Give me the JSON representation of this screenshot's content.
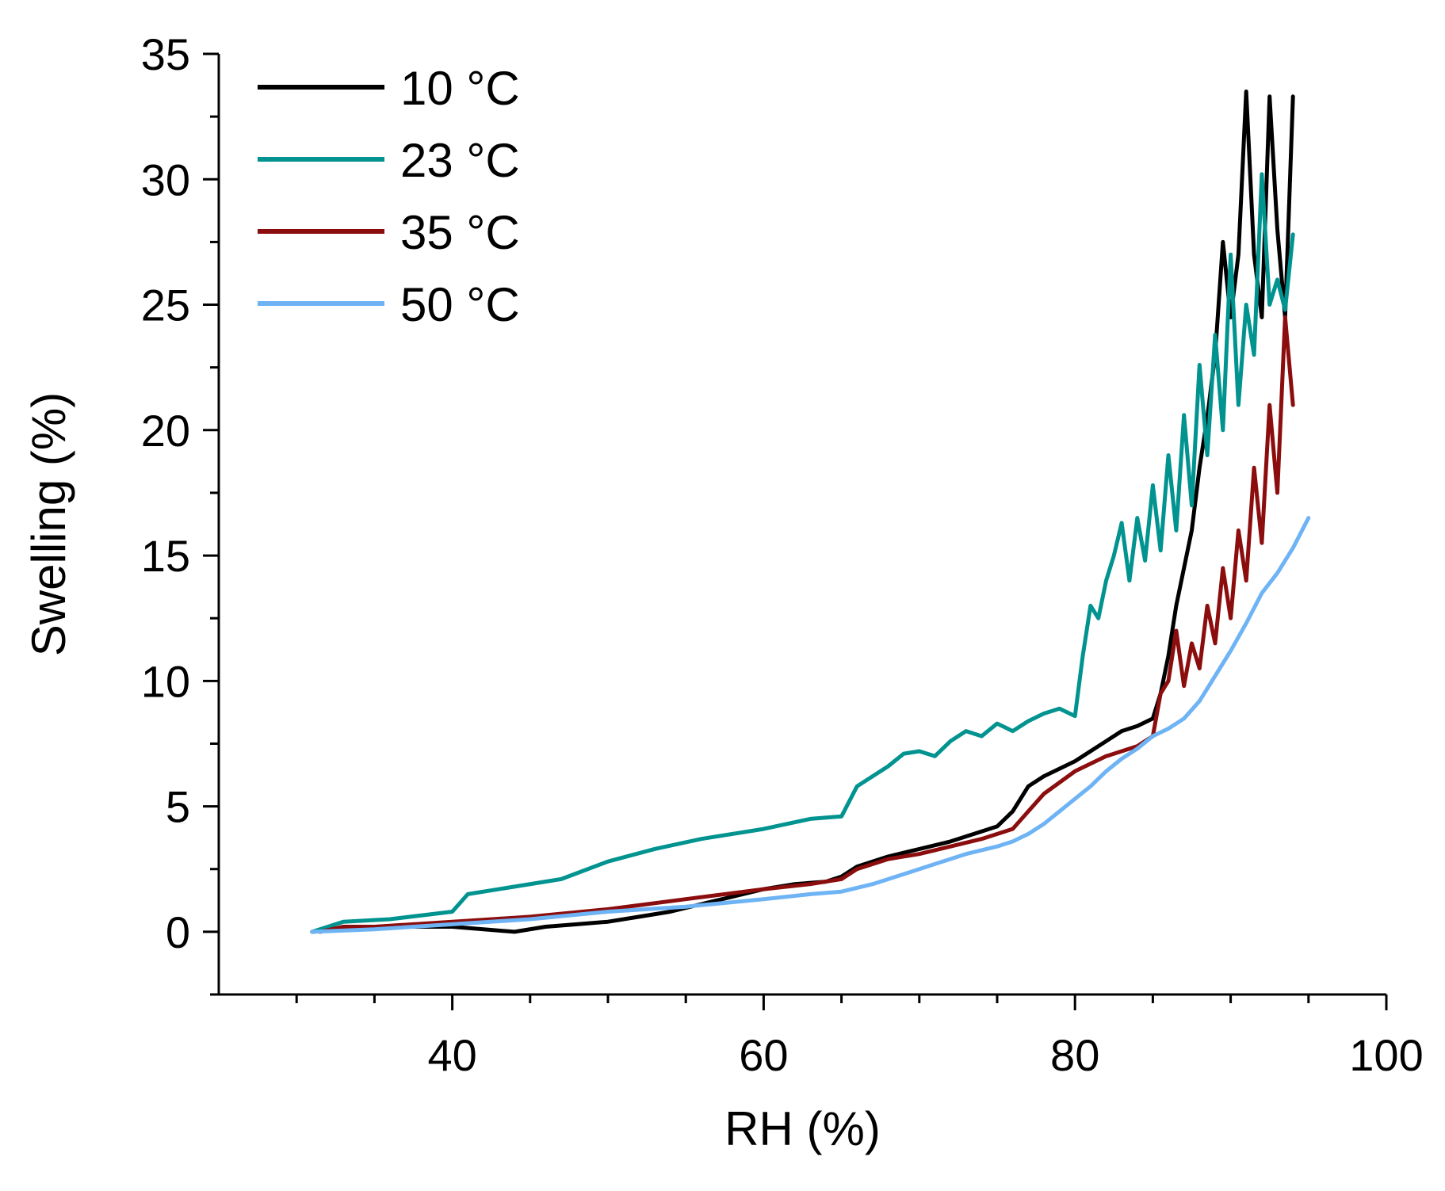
{
  "chart_data": {
    "type": "line",
    "title": "",
    "xlabel": "RH (%)",
    "ylabel": "Swelling (%)",
    "xlim": [
      25,
      100
    ],
    "ylim": [
      -2.5,
      35
    ],
    "x_ticks": [
      40,
      60,
      80,
      100
    ],
    "x_tick_labels": [
      "40",
      "60",
      "80",
      "100"
    ],
    "y_ticks": [
      0,
      5,
      10,
      15,
      20,
      25,
      30,
      35
    ],
    "y_tick_labels": [
      "0",
      "5",
      "10",
      "15",
      "20",
      "25",
      "30",
      "35"
    ],
    "x_minor_tick_step": 5,
    "y_minor_tick_step": 2.5,
    "grid": false,
    "legend_position": "top-left",
    "series": [
      {
        "name": "10 °C",
        "color": "#000000",
        "x": [
          31,
          33,
          36,
          40,
          44,
          46,
          48,
          50,
          52,
          54,
          56,
          58,
          60,
          62,
          64,
          65,
          66,
          68,
          70,
          72,
          74,
          75,
          76,
          77,
          78,
          79,
          80,
          81,
          82,
          83,
          84,
          85,
          85.5,
          86,
          86.5,
          87,
          87.5,
          88,
          88.5,
          89,
          89.5,
          90,
          90.5,
          91,
          91.5,
          92,
          92.5,
          93,
          93.5,
          94
        ],
        "y": [
          0,
          0.1,
          0.2,
          0.2,
          0,
          0.2,
          0.3,
          0.4,
          0.6,
          0.8,
          1.1,
          1.4,
          1.7,
          1.9,
          2.0,
          2.2,
          2.6,
          3.0,
          3.3,
          3.6,
          4.0,
          4.2,
          4.8,
          5.8,
          6.2,
          6.5,
          6.8,
          7.2,
          7.6,
          8.0,
          8.2,
          8.5,
          9.5,
          11.0,
          13.0,
          14.5,
          16.0,
          18.5,
          20.5,
          23.0,
          27.5,
          24.5,
          27.0,
          33.5,
          27.0,
          24.5,
          33.3,
          28.0,
          24.5,
          33.3
        ]
      },
      {
        "name": "23 °C",
        "color": "#00938F",
        "x": [
          31,
          33,
          36,
          40,
          41,
          44,
          47,
          50,
          53,
          56,
          60,
          63,
          65,
          66,
          68,
          69,
          70,
          71,
          72,
          73,
          74,
          75,
          76,
          77,
          78,
          79,
          80,
          80.5,
          81,
          81.5,
          82,
          82.5,
          83,
          83.5,
          84,
          84.5,
          85,
          85.5,
          86,
          86.5,
          87,
          87.5,
          88,
          88.5,
          89,
          89.5,
          90,
          90.5,
          91,
          91.5,
          92,
          92.5,
          93,
          93.5,
          94
        ],
        "y": [
          0,
          0.4,
          0.5,
          0.8,
          1.5,
          1.8,
          2.1,
          2.8,
          3.3,
          3.7,
          4.1,
          4.5,
          4.6,
          5.8,
          6.6,
          7.1,
          7.2,
          7.0,
          7.6,
          8.0,
          7.8,
          8.3,
          8.0,
          8.4,
          8.7,
          8.9,
          8.6,
          11.0,
          13.0,
          12.5,
          14.0,
          15.0,
          16.3,
          14.0,
          16.5,
          14.8,
          17.8,
          15.2,
          19.0,
          16.0,
          20.6,
          17.0,
          22.6,
          19.0,
          23.8,
          20.0,
          27.0,
          21.0,
          25.0,
          23.0,
          30.2,
          25.0,
          26.0,
          24.8,
          27.8
        ]
      },
      {
        "name": "35 °C",
        "color": "#8B0D0D",
        "x": [
          31.5,
          33,
          35,
          40,
          45,
          50,
          55,
          60,
          63,
          65,
          66,
          68,
          70,
          72,
          74,
          76,
          77,
          78,
          80,
          82,
          84,
          85,
          85.5,
          86,
          86.5,
          87,
          87.5,
          88,
          88.5,
          89,
          89.5,
          90,
          90.5,
          91,
          91.5,
          92,
          92.5,
          93,
          93.5,
          94
        ],
        "y": [
          0,
          0.2,
          0.2,
          0.4,
          0.6,
          0.9,
          1.3,
          1.7,
          1.9,
          2.1,
          2.5,
          2.9,
          3.1,
          3.4,
          3.7,
          4.1,
          4.8,
          5.5,
          6.4,
          7.0,
          7.4,
          7.8,
          9.5,
          10.0,
          12.0,
          9.8,
          11.5,
          10.5,
          13.0,
          11.5,
          14.5,
          12.5,
          16.0,
          14.0,
          18.5,
          15.5,
          21.0,
          17.5,
          24.5,
          21.0
        ]
      },
      {
        "name": "50 °C",
        "color": "#6EB4F5",
        "x": [
          31,
          35,
          40,
          45,
          50,
          55,
          60,
          63,
          65,
          67,
          69,
          71,
          73,
          75,
          76,
          77,
          78,
          79,
          80,
          81,
          82,
          83,
          84,
          85,
          86,
          87,
          88,
          89,
          90,
          91,
          92,
          93,
          94,
          95
        ],
        "y": [
          0,
          0.1,
          0.3,
          0.5,
          0.8,
          1.0,
          1.3,
          1.5,
          1.6,
          1.9,
          2.3,
          2.7,
          3.1,
          3.4,
          3.6,
          3.9,
          4.3,
          4.8,
          5.3,
          5.8,
          6.4,
          6.9,
          7.3,
          7.8,
          8.1,
          8.5,
          9.2,
          10.2,
          11.2,
          12.3,
          13.5,
          14.3,
          15.3,
          16.5
        ]
      }
    ]
  }
}
